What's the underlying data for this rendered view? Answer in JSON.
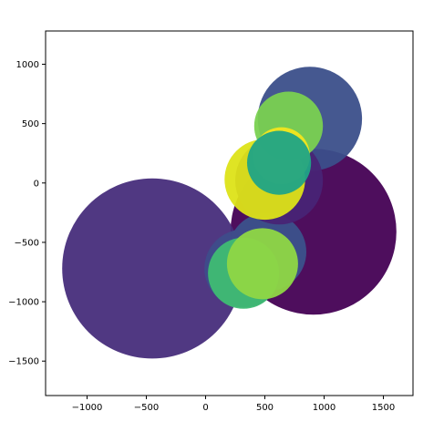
{
  "chart_data": {
    "type": "scatter",
    "title": "",
    "xlabel": "",
    "ylabel": "",
    "xlim": [
      -1350,
      1750
    ],
    "ylim": [
      -1790,
      1280
    ],
    "x_ticks": [
      -1000,
      -500,
      0,
      500,
      1000,
      1500
    ],
    "y_ticks": [
      -1500,
      -1000,
      -500,
      0,
      500,
      1000
    ],
    "x_tick_labels": [
      "−1000",
      "−500",
      "0",
      "500",
      "1000",
      "1500"
    ],
    "y_tick_labels": [
      "−1500",
      "−1000",
      "−500",
      "0",
      "500",
      "1000"
    ],
    "grid": false,
    "circles": [
      {
        "x": 910,
        "y": -410,
        "r": 700,
        "color": "#440154"
      },
      {
        "x": -450,
        "y": -720,
        "r": 760,
        "color": "#472d7b"
      },
      {
        "x": 880,
        "y": 540,
        "r": 440,
        "color": "#3b4f8a"
      },
      {
        "x": 520,
        "y": -580,
        "r": 330,
        "color": "#3b528b"
      },
      {
        "x": 620,
        "y": 20,
        "r": 370,
        "color": "#482475"
      },
      {
        "x": 500,
        "y": 30,
        "r": 340,
        "color": "#dde318"
      },
      {
        "x": 320,
        "y": -720,
        "r": 330,
        "color": "#3e4c8a"
      },
      {
        "x": 320,
        "y": -760,
        "r": 300,
        "color": "#3fbc73"
      },
      {
        "x": 700,
        "y": 480,
        "r": 290,
        "color": "#7ad151"
      },
      {
        "x": 640,
        "y": 230,
        "r": 240,
        "color": "#f2e51d"
      },
      {
        "x": 620,
        "y": 170,
        "r": 270,
        "color": "#20a486"
      },
      {
        "x": 480,
        "y": -680,
        "r": 300,
        "color": "#8fd744"
      }
    ]
  }
}
